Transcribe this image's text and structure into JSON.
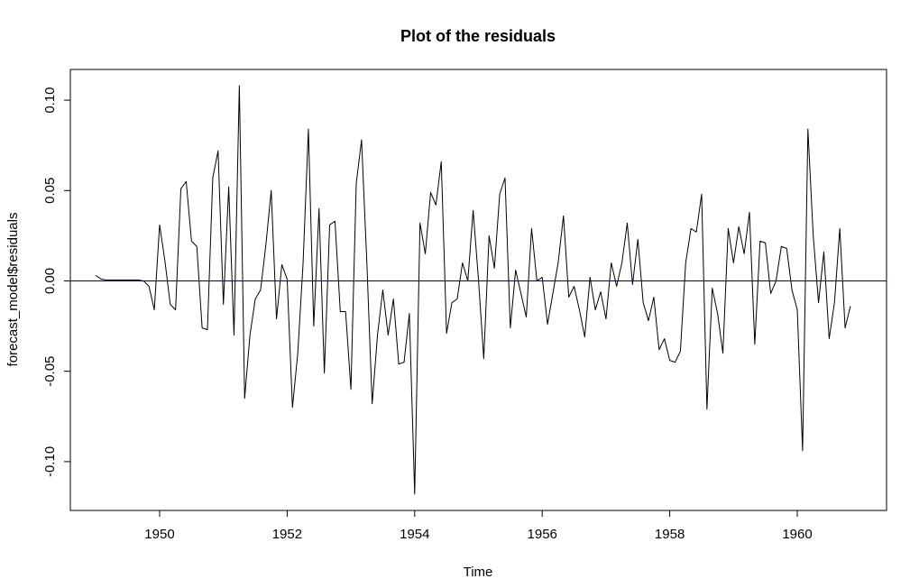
{
  "chart_data": {
    "type": "line",
    "title": "Plot of the residuals",
    "xlabel": "Time",
    "ylabel": "forecast_model$residuals",
    "xlim": [
      1948.6,
      1961.4
    ],
    "ylim": [
      -0.127,
      0.117
    ],
    "x_ticks": [
      1950,
      1952,
      1954,
      1956,
      1958,
      1960
    ],
    "x_tick_labels": [
      "1950",
      "1952",
      "1954",
      "1956",
      "1958",
      "1960"
    ],
    "y_ticks": [
      -0.1,
      -0.05,
      0.0,
      0.05,
      0.1
    ],
    "y_tick_labels": [
      "-0.10",
      "-0.05",
      "0.00",
      "0.05",
      "0.10"
    ],
    "grid": false,
    "legend": "none",
    "reference_line": {
      "y": 0,
      "color": "#000080"
    },
    "line_color": "#000000",
    "series": [
      {
        "x_start": 1949.0,
        "frequency": 12,
        "values": [
          0.003,
          0.001,
          0.0005,
          0.0005,
          0.0005,
          0.0005,
          0.0005,
          0.0005,
          0.0005,
          0.0,
          -0.003,
          -0.016,
          0.031,
          0.011,
          -0.013,
          -0.016,
          0.051,
          0.055,
          0.022,
          0.019,
          -0.026,
          -0.027,
          0.057,
          0.072,
          -0.013,
          0.052,
          -0.03,
          0.108,
          -0.065,
          -0.03,
          -0.01,
          -0.005,
          0.02,
          0.05,
          -0.021,
          0.009,
          0.001,
          -0.07,
          -0.04,
          0.01,
          0.084,
          -0.025,
          0.04,
          -0.051,
          0.031,
          0.033,
          -0.017,
          -0.017,
          -0.06,
          0.054,
          0.078,
          0.01,
          -0.068,
          -0.03,
          -0.005,
          -0.03,
          -0.01,
          -0.046,
          -0.045,
          -0.018,
          -0.118,
          0.032,
          0.015,
          0.049,
          0.042,
          0.066,
          -0.029,
          -0.012,
          -0.01,
          0.01,
          0.0,
          0.039,
          0.001,
          -0.043,
          0.025,
          0.007,
          0.048,
          0.057,
          -0.026,
          0.006,
          -0.007,
          -0.02,
          0.029,
          0.0,
          0.002,
          -0.024,
          -0.007,
          0.01,
          0.036,
          -0.009,
          -0.003,
          -0.016,
          -0.031,
          0.002,
          -0.016,
          -0.006,
          -0.021,
          0.01,
          -0.003,
          0.01,
          0.032,
          -0.002,
          0.023,
          -0.012,
          -0.022,
          -0.009,
          -0.038,
          -0.032,
          -0.044,
          -0.045,
          -0.039,
          0.01,
          0.029,
          0.027,
          0.048,
          -0.071,
          -0.004,
          -0.018,
          -0.04,
          0.029,
          0.01,
          0.03,
          0.015,
          0.038,
          -0.035,
          0.022,
          0.021,
          -0.007,
          0.0,
          0.019,
          0.018,
          -0.005,
          -0.016,
          -0.094,
          0.084,
          0.025,
          -0.012,
          0.016,
          -0.032,
          -0.012,
          0.029,
          -0.026,
          -0.014
        ]
      }
    ]
  }
}
